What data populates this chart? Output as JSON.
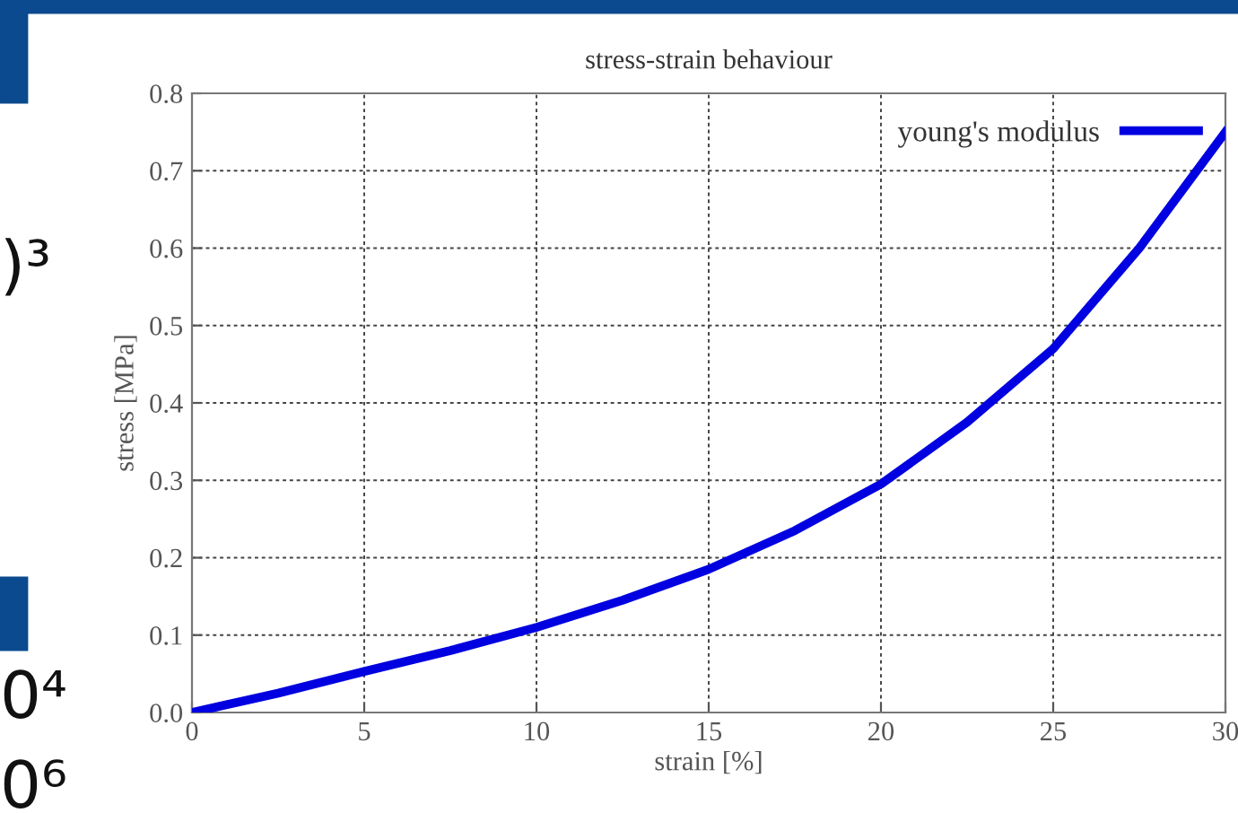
{
  "chart_data": {
    "type": "line",
    "title": "stress-strain behaviour",
    "xlabel": "strain [%]",
    "ylabel": "stress [MPa]",
    "x": [
      0,
      2.5,
      5,
      7.5,
      10,
      12.5,
      15,
      17.5,
      20,
      22.5,
      25,
      27.5,
      30
    ],
    "series": [
      {
        "name": "young's modulus",
        "color": "#0000e0",
        "values": [
          0,
          0.025,
          0.053,
          0.08,
          0.11,
          0.145,
          0.185,
          0.235,
          0.295,
          0.375,
          0.47,
          0.6,
          0.75
        ]
      }
    ],
    "xlim": [
      0,
      30
    ],
    "xticks": [
      0,
      5,
      10,
      15,
      20,
      25,
      30
    ],
    "ylim": [
      0,
      0.8
    ],
    "yticks": [
      {
        "value": 0,
        "label": "0.0"
      },
      {
        "value": 0.1,
        "label": "0.1"
      },
      {
        "value": 0.2,
        "label": "0.2"
      },
      {
        "value": 0.3,
        "label": "0.3"
      },
      {
        "value": 0.4,
        "label": "0.4"
      },
      {
        "value": 0.5,
        "label": "0.5"
      },
      {
        "value": 0.6,
        "label": "0.6"
      },
      {
        "value": 0.7,
        "label": "0.7"
      },
      {
        "value": 0.8,
        "label": "0.8"
      }
    ],
    "grid": true,
    "legend": "top right",
    "marker": "none",
    "line_style": "solid",
    "annotations": [
      ")³",
      "0⁴",
      "0⁶"
    ]
  }
}
